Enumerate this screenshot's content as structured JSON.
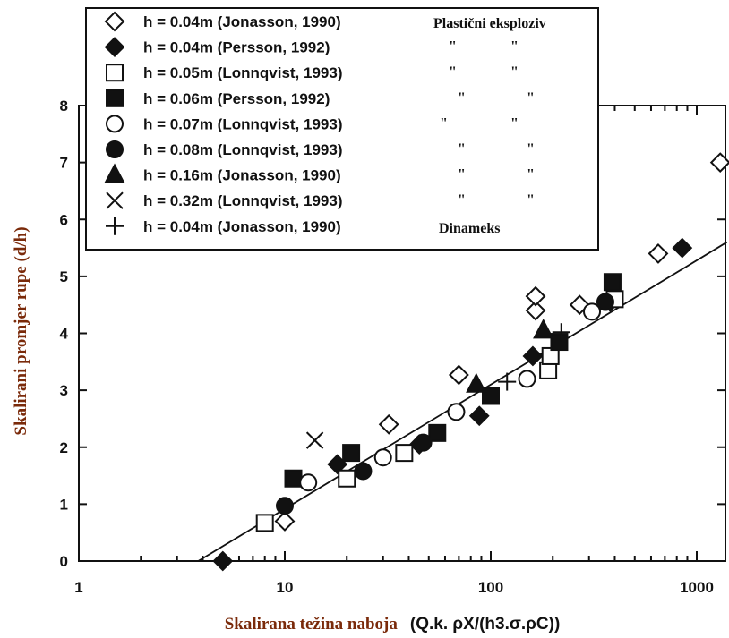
{
  "chart_data": {
    "type": "scatter",
    "xscale": "log",
    "xlim": [
      1,
      1400
    ],
    "ylim": [
      0,
      8
    ],
    "x_ticks": [
      1,
      10,
      100,
      1000
    ],
    "x_tick_labels": [
      "1",
      "10",
      "100",
      "1000"
    ],
    "y_ticks": [
      0,
      1,
      2,
      3,
      4,
      5,
      6,
      7,
      8
    ],
    "y_tick_labels": [
      "0",
      "1",
      "2",
      "3",
      "4",
      "5",
      "6",
      "7",
      "8"
    ],
    "ylabel": "Skalirani promjer rupe  (d/h)",
    "xlabel": {
      "text": "Skalirana težina naboja",
      "formula": "(Q.k. ρX/(h3.σ.ρC))"
    },
    "legend_position": "top-left",
    "legend_notes": {
      "plasticni": "Plastični eksploziv",
      "quote": "\"",
      "dinameks": "Dinameks"
    },
    "fit_line": {
      "x": [
        3.8,
        1400
      ],
      "y": [
        0,
        5.6
      ]
    },
    "series": [
      {
        "name": "h = 0.04m (Jonasson, 1990)",
        "marker": "diamond-open",
        "note": "plasticni",
        "points": [
          [
            10,
            0.7
          ],
          [
            32,
            2.4
          ],
          [
            70,
            3.27
          ],
          [
            165,
            4.4
          ],
          [
            165,
            4.65
          ],
          [
            270,
            4.5
          ],
          [
            650,
            5.4
          ],
          [
            1300,
            7.0
          ]
        ]
      },
      {
        "name": "h = 0.04m (Persson, 1992)",
        "marker": "diamond-filled",
        "note": "quote",
        "points": [
          [
            5,
            0.0
          ],
          [
            18,
            1.7
          ],
          [
            45,
            2.05
          ],
          [
            88,
            2.55
          ],
          [
            160,
            3.6
          ],
          [
            380,
            4.55
          ],
          [
            850,
            5.5
          ]
        ]
      },
      {
        "name": "h = 0.05m (Lonnqvist, 1993)",
        "marker": "square-open",
        "note": "quote",
        "points": [
          [
            8,
            0.67
          ],
          [
            20,
            1.45
          ],
          [
            38,
            1.9
          ],
          [
            190,
            3.35
          ],
          [
            195,
            3.6
          ],
          [
            400,
            4.6
          ]
        ]
      },
      {
        "name": "h = 0.06m (Persson, 1992)",
        "marker": "square-filled",
        "note": "quote",
        "points": [
          [
            11,
            1.45
          ],
          [
            21,
            1.9
          ],
          [
            55,
            2.25
          ],
          [
            100,
            2.9
          ],
          [
            215,
            3.85
          ],
          [
            390,
            4.9
          ]
        ]
      },
      {
        "name": "h = 0.07m (Lonnqvist, 1993)",
        "marker": "circle-open",
        "note": "quote",
        "points": [
          [
            13,
            1.38
          ],
          [
            30,
            1.82
          ],
          [
            68,
            2.62
          ],
          [
            150,
            3.2
          ],
          [
            310,
            4.38
          ]
        ]
      },
      {
        "name": "h = 0.08m (Lonnqvist, 1993)",
        "marker": "circle-filled",
        "note": "quote",
        "points": [
          [
            10,
            0.97
          ],
          [
            24,
            1.58
          ],
          [
            47,
            2.08
          ],
          [
            360,
            4.55
          ]
        ]
      },
      {
        "name": "h = 0.16m (Jonasson, 1990)",
        "marker": "triangle-filled",
        "note": "quote",
        "points": [
          [
            85,
            3.1
          ],
          [
            180,
            4.05
          ]
        ]
      },
      {
        "name": "h = 0.32m (Lonnqvist, 1993)",
        "marker": "cross-x",
        "note": "quote",
        "points": [
          [
            14,
            2.12
          ]
        ]
      },
      {
        "name": "h = 0.04m (Jonasson, 1990)",
        "marker": "plus",
        "note": "dinameks",
        "points": [
          [
            120,
            3.15
          ],
          [
            220,
            4.02
          ]
        ]
      }
    ]
  }
}
